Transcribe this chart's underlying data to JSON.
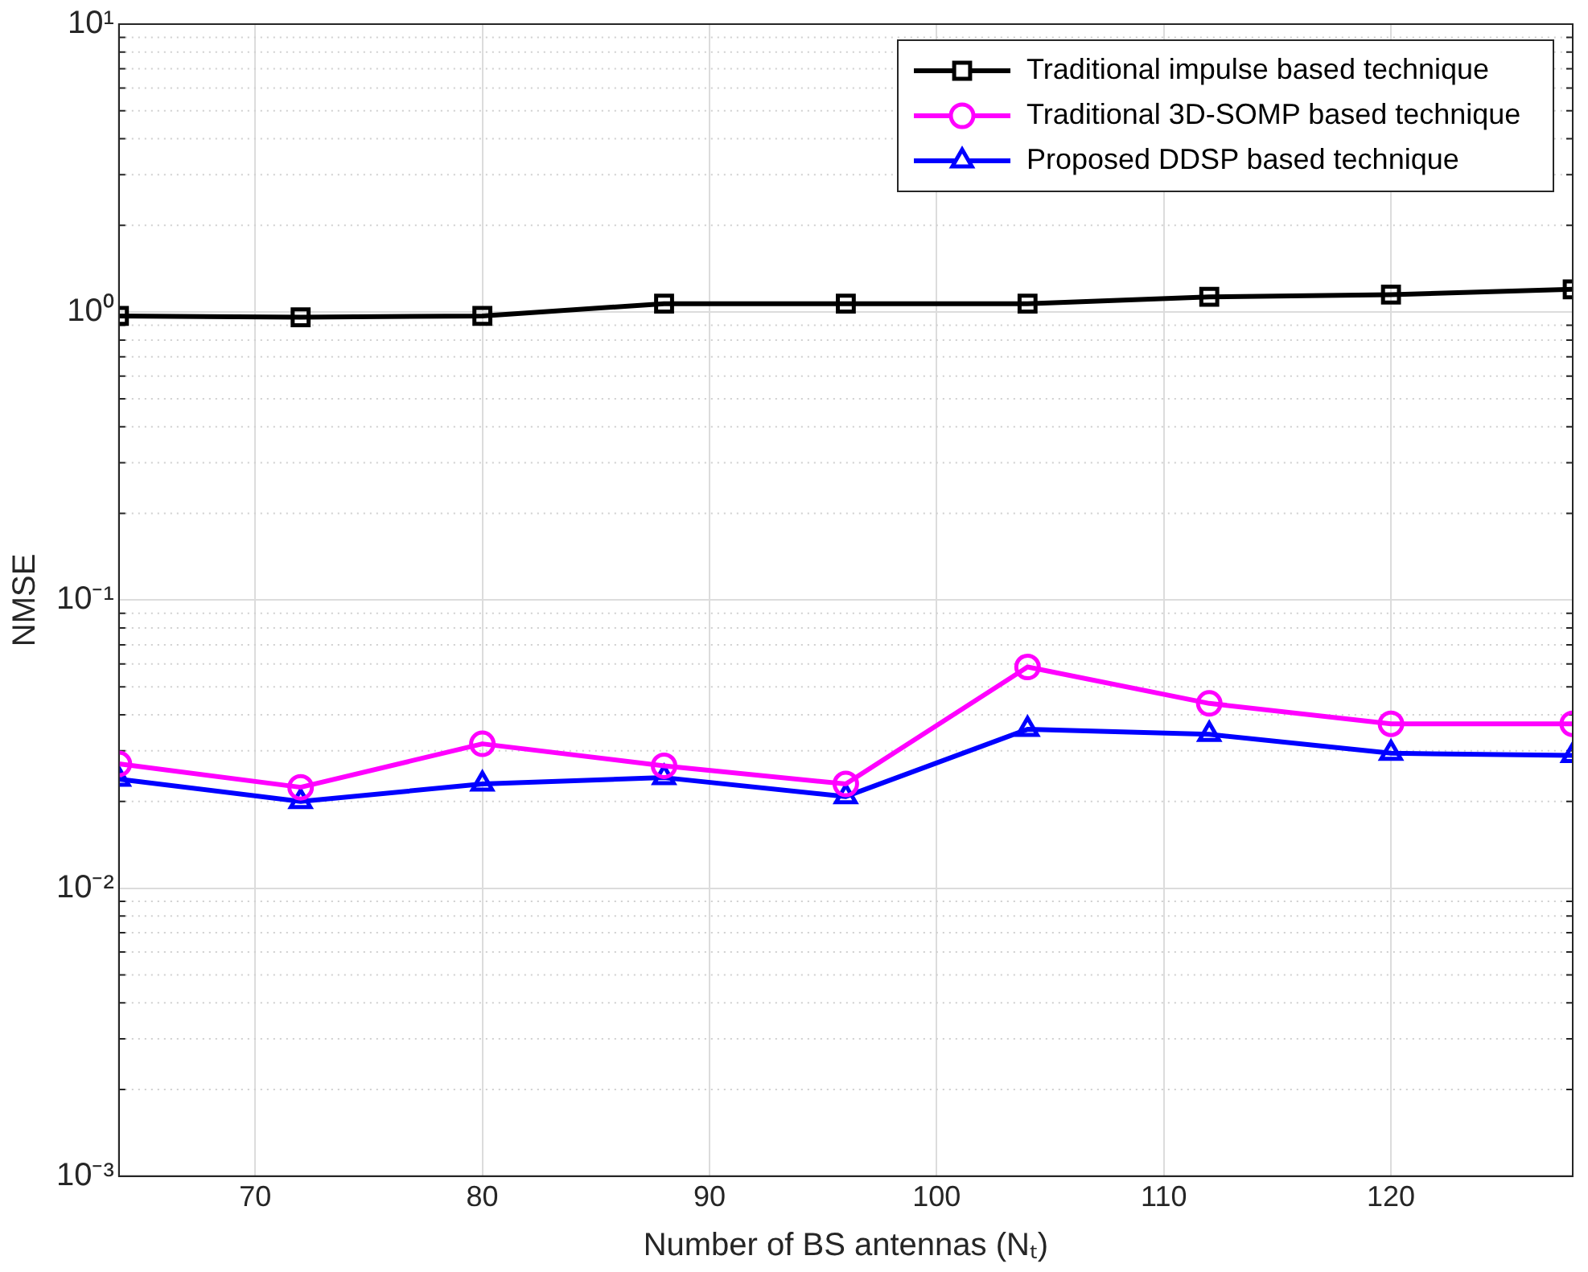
{
  "chart_data": {
    "type": "line",
    "xlabel": "Number of BS antennas (Nₜ)",
    "ylabel": "NMSE",
    "x": [
      64,
      72,
      80,
      88,
      96,
      104,
      112,
      120,
      128
    ],
    "series": [
      {
        "name": "Traditional impulse based technique",
        "color": "#000000",
        "marker": "square",
        "values": [
          0.97,
          0.96,
          0.97,
          1.07,
          1.07,
          1.07,
          1.13,
          1.15,
          1.2
        ]
      },
      {
        "name": "Traditional 3D-SOMP based technique",
        "color": "#ff00ff",
        "marker": "circle",
        "values": [
          0.027,
          0.0224,
          0.0317,
          0.0266,
          0.023,
          0.0586,
          0.0438,
          0.0372,
          0.0372
        ]
      },
      {
        "name": "Proposed DDSP based technique",
        "color": "#0000ff",
        "marker": "triangle",
        "values": [
          0.0239,
          0.02,
          0.023,
          0.0242,
          0.0208,
          0.0356,
          0.0342,
          0.0294,
          0.0289
        ]
      }
    ],
    "xlim": [
      64,
      128
    ],
    "xticks": [
      70,
      80,
      90,
      100,
      110,
      120
    ],
    "ylim": [
      0.001,
      10
    ],
    "yticks": [
      {
        "value": 0.001,
        "label": "10⁻³"
      },
      {
        "value": 0.01,
        "label": "10⁻²"
      },
      {
        "value": 0.1,
        "label": "10⁻¹"
      },
      {
        "value": 1,
        "label": "10⁰"
      },
      {
        "value": 10,
        "label": "10¹"
      }
    ],
    "log": "y",
    "grid": true,
    "legend": "top right",
    "line_style": "solid"
  }
}
